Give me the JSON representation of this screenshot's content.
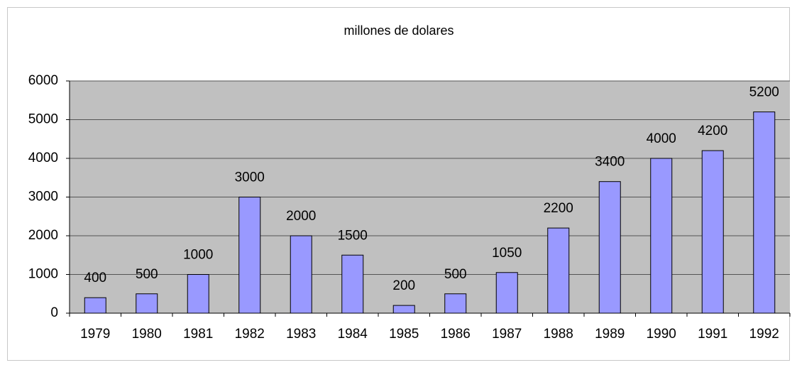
{
  "chart_data": {
    "type": "bar",
    "title": "millones de dolares",
    "categories": [
      "1979",
      "1980",
      "1981",
      "1982",
      "1983",
      "1984",
      "1985",
      "1986",
      "1987",
      "1988",
      "1989",
      "1990",
      "1991",
      "1992"
    ],
    "values": [
      400,
      500,
      1000,
      3000,
      2000,
      1500,
      200,
      500,
      1050,
      2200,
      3400,
      4000,
      4200,
      5200
    ],
    "color": "#9999ff",
    "ylim": [
      0,
      6000
    ],
    "yticks": [
      0,
      1000,
      2000,
      3000,
      4000,
      5000,
      6000
    ],
    "grid": true
  }
}
